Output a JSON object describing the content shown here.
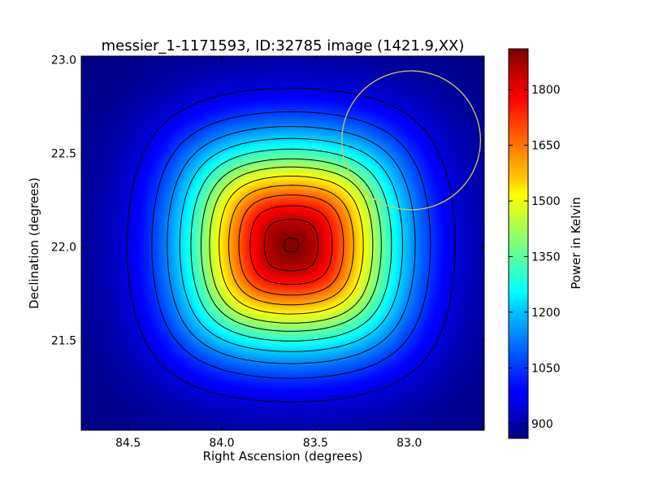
{
  "chart_data": {
    "type": "heatmap",
    "title": "messier_1-1171593, ID:32785 image (1421.9,XX)",
    "xlabel": "Right Ascension (degrees)",
    "ylabel": "Declination (degrees)",
    "colorbar_label": "Power in Kelvin",
    "colormap": "jet",
    "xlim": [
      84.75,
      82.6
    ],
    "ylim": [
      21.02,
      23.02
    ],
    "x_inverted": true,
    "xticks": [
      "84.5",
      "84.0",
      "83.5",
      "83.0"
    ],
    "xtick_values": [
      84.5,
      84.0,
      83.5,
      83.0
    ],
    "yticks": [
      "21.5",
      "22.0",
      "22.5",
      "23.0"
    ],
    "ytick_values": [
      21.5,
      22.0,
      22.5,
      23.0
    ],
    "colorbar_range": [
      860,
      1910
    ],
    "colorbar_ticks": [
      "900",
      "1050",
      "1200",
      "1350",
      "1500",
      "1650",
      "1800"
    ],
    "colorbar_tick_values": [
      900,
      1050,
      1200,
      1350,
      1500,
      1650,
      1800
    ],
    "peak": {
      "ra": 83.63,
      "dec": 22.01,
      "value": 1905
    },
    "baseline_value": 865,
    "contour_levels": [
      960,
      1050,
      1130,
      1210,
      1290,
      1370,
      1440,
      1520,
      1600,
      1680,
      1760,
      1840,
      1900
    ],
    "beam_circle": {
      "ra": 82.99,
      "dec": 22.57,
      "radius_deg": 0.37,
      "color": "#d4c84a"
    },
    "grid": false
  }
}
